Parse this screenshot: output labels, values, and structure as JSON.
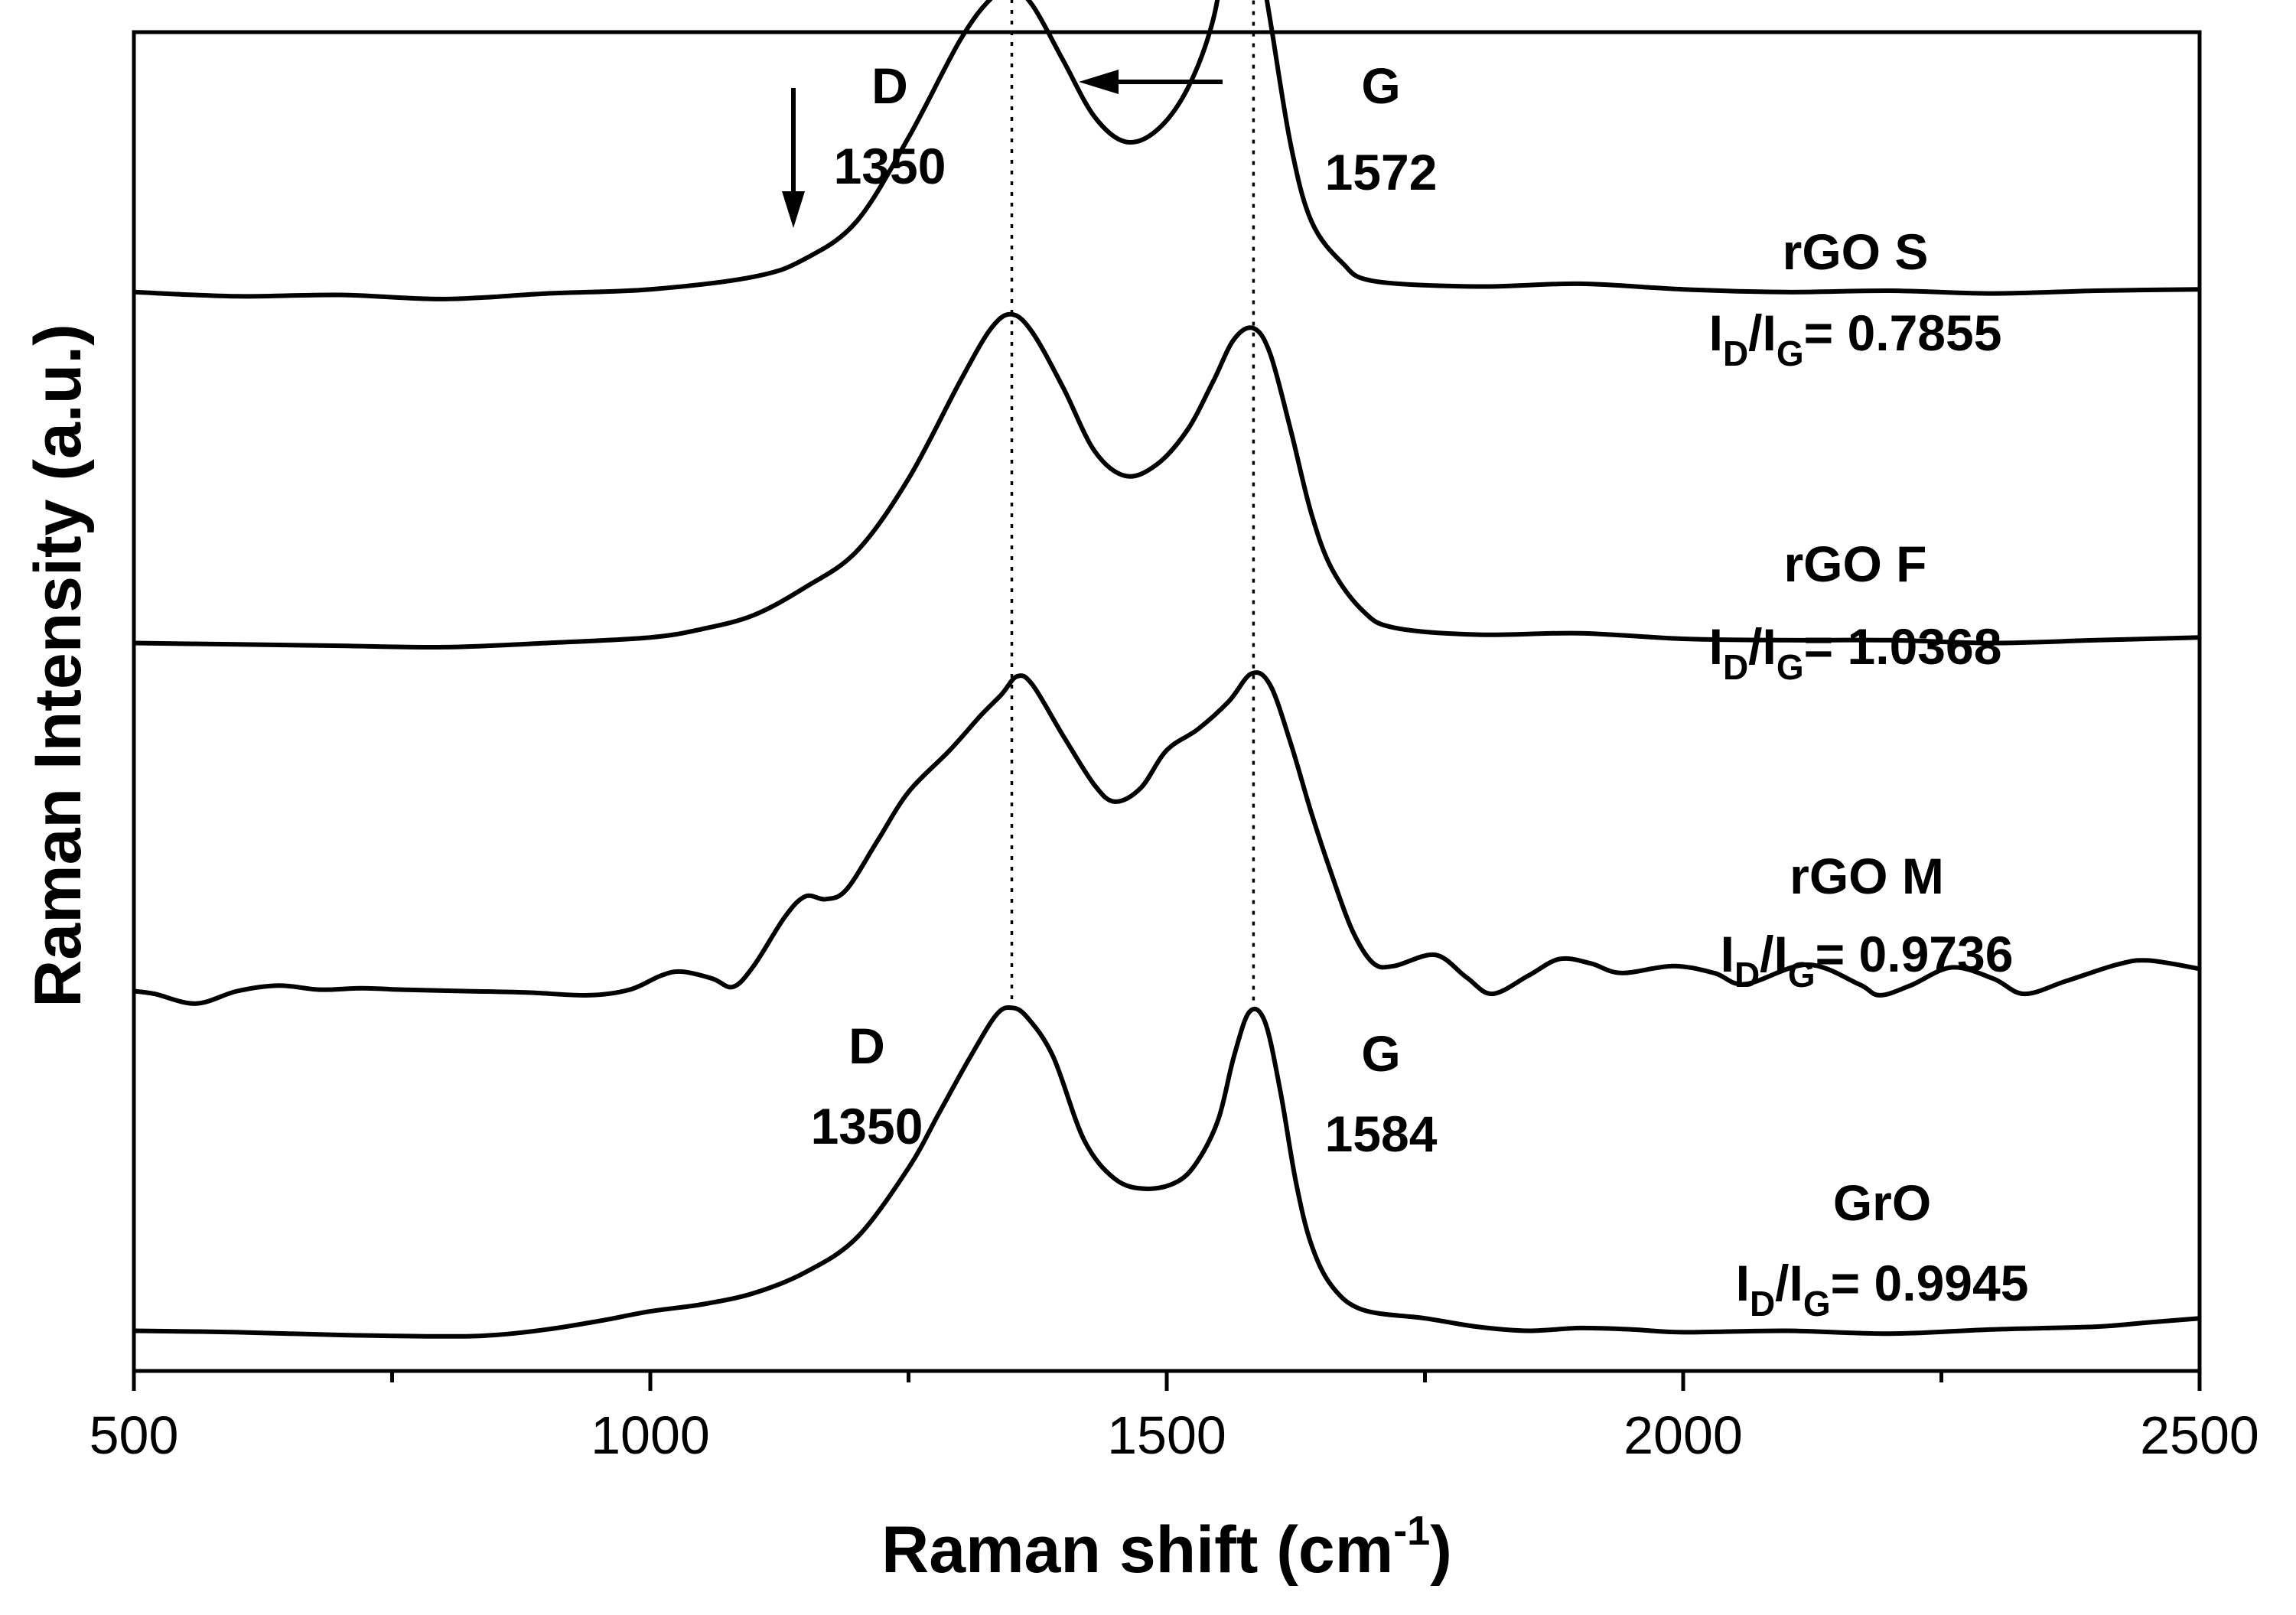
{
  "chart_data": {
    "type": "line",
    "title": "",
    "xlabel_main": "Raman shift (cm",
    "xlabel_sup": "-1",
    "xlabel_end": ")",
    "ylabel": "Raman Intensity (a.u.)",
    "xlim": [
      500,
      2500
    ],
    "ylim": [
      0,
      1
    ],
    "xticks": [
      500,
      1000,
      1500,
      2000,
      2500
    ],
    "ratio_prefix": "I",
    "ratio_sub_d": "D",
    "ratio_slash": "/I",
    "ratio_sub_g": "G",
    "ratio_eq": "= ",
    "series": [
      {
        "name": "rGO S",
        "ratio_value": "0.7855",
        "offset": 0.745,
        "pts": [
          [
            500,
            0.004
          ],
          [
            600,
            0.001
          ],
          [
            700,
            0.002
          ],
          [
            800,
            -0.001
          ],
          [
            900,
            0.003
          ],
          [
            1000,
            0.006
          ],
          [
            1100,
            0.015
          ],
          [
            1150,
            0.028
          ],
          [
            1200,
            0.055
          ],
          [
            1250,
            0.115
          ],
          [
            1300,
            0.185
          ],
          [
            1330,
            0.215
          ],
          [
            1350,
            0.222
          ],
          [
            1370,
            0.21
          ],
          [
            1400,
            0.17
          ],
          [
            1430,
            0.13
          ],
          [
            1460,
            0.112
          ],
          [
            1490,
            0.12
          ],
          [
            1520,
            0.15
          ],
          [
            1545,
            0.2
          ],
          [
            1560,
            0.265
          ],
          [
            1572,
            0.295
          ],
          [
            1585,
            0.265
          ],
          [
            1600,
            0.2
          ],
          [
            1620,
            0.11
          ],
          [
            1640,
            0.055
          ],
          [
            1670,
            0.025
          ],
          [
            1700,
            0.012
          ],
          [
            1800,
            0.008
          ],
          [
            1900,
            0.01
          ],
          [
            2000,
            0.006
          ],
          [
            2100,
            0.004
          ],
          [
            2200,
            0.005
          ],
          [
            2300,
            0.003
          ],
          [
            2400,
            0.005
          ],
          [
            2500,
            0.006
          ]
        ]
      },
      {
        "name": "rGO F",
        "ratio_value": "1.0368",
        "offset": 0.495,
        "pts": [
          [
            500,
            0.002
          ],
          [
            600,
            0.001
          ],
          [
            700,
            0.0
          ],
          [
            800,
            -0.001
          ],
          [
            900,
            0.002
          ],
          [
            1000,
            0.006
          ],
          [
            1050,
            0.012
          ],
          [
            1100,
            0.022
          ],
          [
            1150,
            0.042
          ],
          [
            1200,
            0.068
          ],
          [
            1250,
            0.12
          ],
          [
            1300,
            0.19
          ],
          [
            1330,
            0.228
          ],
          [
            1350,
            0.238
          ],
          [
            1370,
            0.225
          ],
          [
            1400,
            0.185
          ],
          [
            1430,
            0.14
          ],
          [
            1460,
            0.122
          ],
          [
            1490,
            0.13
          ],
          [
            1520,
            0.155
          ],
          [
            1545,
            0.19
          ],
          [
            1565,
            0.22
          ],
          [
            1584,
            0.228
          ],
          [
            1600,
            0.21
          ],
          [
            1620,
            0.155
          ],
          [
            1640,
            0.095
          ],
          [
            1660,
            0.055
          ],
          [
            1690,
            0.025
          ],
          [
            1720,
            0.013
          ],
          [
            1800,
            0.008
          ],
          [
            1900,
            0.009
          ],
          [
            2000,
            0.005
          ],
          [
            2100,
            0.004
          ],
          [
            2200,
            0.004
          ],
          [
            2300,
            0.002
          ],
          [
            2400,
            0.004
          ],
          [
            2500,
            0.006
          ]
        ]
      },
      {
        "name": "rGO M",
        "ratio_value": "0.9736",
        "offset": 0.245,
        "pts": [
          [
            500,
            0.002
          ],
          [
            520,
            0.0
          ],
          [
            560,
            -0.007
          ],
          [
            600,
            0.002
          ],
          [
            640,
            0.006
          ],
          [
            680,
            0.003
          ],
          [
            720,
            0.004
          ],
          [
            760,
            0.003
          ],
          [
            820,
            0.002
          ],
          [
            880,
            0.001
          ],
          [
            940,
            -0.001
          ],
          [
            980,
            0.003
          ],
          [
            1010,
            0.013
          ],
          [
            1030,
            0.016
          ],
          [
            1060,
            0.011
          ],
          [
            1080,
            0.005
          ],
          [
            1100,
            0.02
          ],
          [
            1130,
            0.055
          ],
          [
            1150,
            0.07
          ],
          [
            1170,
            0.068
          ],
          [
            1190,
            0.075
          ],
          [
            1220,
            0.11
          ],
          [
            1250,
            0.145
          ],
          [
            1290,
            0.175
          ],
          [
            1320,
            0.2
          ],
          [
            1340,
            0.215
          ],
          [
            1355,
            0.228
          ],
          [
            1370,
            0.222
          ],
          [
            1400,
            0.185
          ],
          [
            1430,
            0.15
          ],
          [
            1450,
            0.138
          ],
          [
            1475,
            0.148
          ],
          [
            1500,
            0.175
          ],
          [
            1530,
            0.19
          ],
          [
            1560,
            0.21
          ],
          [
            1582,
            0.23
          ],
          [
            1600,
            0.222
          ],
          [
            1620,
            0.18
          ],
          [
            1640,
            0.13
          ],
          [
            1660,
            0.085
          ],
          [
            1680,
            0.045
          ],
          [
            1700,
            0.022
          ],
          [
            1720,
            0.02
          ],
          [
            1760,
            0.028
          ],
          [
            1790,
            0.012
          ],
          [
            1815,
            0.0
          ],
          [
            1850,
            0.013
          ],
          [
            1880,
            0.025
          ],
          [
            1910,
            0.022
          ],
          [
            1940,
            0.015
          ],
          [
            1990,
            0.02
          ],
          [
            2030,
            0.015
          ],
          [
            2060,
            0.007
          ],
          [
            2120,
            0.021
          ],
          [
            2170,
            0.007
          ],
          [
            2190,
            -0.001
          ],
          [
            2220,
            0.006
          ],
          [
            2260,
            0.019
          ],
          [
            2300,
            0.011
          ],
          [
            2330,
            0.0
          ],
          [
            2370,
            0.009
          ],
          [
            2420,
            0.021
          ],
          [
            2450,
            0.024
          ],
          [
            2500,
            0.018
          ]
        ]
      },
      {
        "name": "GrO",
        "ratio_value": "0.9945",
        "offset": 0.0,
        "pts": [
          [
            500,
            0.003
          ],
          [
            600,
            0.002
          ],
          [
            700,
            0.0
          ],
          [
            800,
            -0.001
          ],
          [
            850,
            0.0
          ],
          [
            900,
            0.004
          ],
          [
            950,
            0.01
          ],
          [
            1000,
            0.017
          ],
          [
            1050,
            0.022
          ],
          [
            1100,
            0.03
          ],
          [
            1150,
            0.045
          ],
          [
            1200,
            0.07
          ],
          [
            1250,
            0.12
          ],
          [
            1280,
            0.16
          ],
          [
            1310,
            0.2
          ],
          [
            1335,
            0.23
          ],
          [
            1350,
            0.235
          ],
          [
            1365,
            0.228
          ],
          [
            1390,
            0.2
          ],
          [
            1420,
            0.14
          ],
          [
            1450,
            0.112
          ],
          [
            1480,
            0.105
          ],
          [
            1510,
            0.11
          ],
          [
            1530,
            0.125
          ],
          [
            1550,
            0.155
          ],
          [
            1565,
            0.2
          ],
          [
            1580,
            0.232
          ],
          [
            1595,
            0.225
          ],
          [
            1610,
            0.175
          ],
          [
            1625,
            0.11
          ],
          [
            1640,
            0.065
          ],
          [
            1660,
            0.035
          ],
          [
            1690,
            0.018
          ],
          [
            1750,
            0.012
          ],
          [
            1800,
            0.006
          ],
          [
            1850,
            0.003
          ],
          [
            1900,
            0.005
          ],
          [
            1950,
            0.004
          ],
          [
            2000,
            0.002
          ],
          [
            2100,
            0.003
          ],
          [
            2200,
            0.001
          ],
          [
            2300,
            0.004
          ],
          [
            2400,
            0.006
          ],
          [
            2450,
            0.009
          ],
          [
            2500,
            0.012
          ]
        ]
      }
    ],
    "vlines": [
      1350,
      1584
    ],
    "annotations": {
      "top_d_label": "D",
      "top_d_value": "1350",
      "top_g_label": "G",
      "top_g_value": "1572",
      "bottom_d_label": "D",
      "bottom_d_value": "1350",
      "bottom_g_label": "G",
      "bottom_g_value": "1584"
    }
  }
}
